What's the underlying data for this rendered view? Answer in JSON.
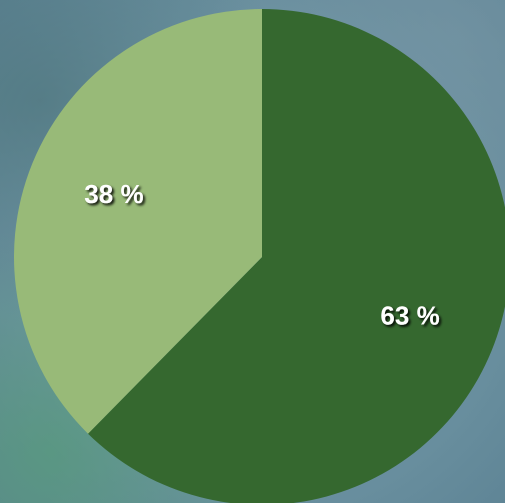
{
  "chart_data": {
    "type": "pie",
    "start_angle_deg": 0,
    "direction": "clockwise",
    "slices": [
      {
        "value": 63,
        "label": "63 %",
        "color": "#35682f"
      },
      {
        "value": 38,
        "label": "38 %",
        "color": "#98ba78"
      }
    ]
  }
}
